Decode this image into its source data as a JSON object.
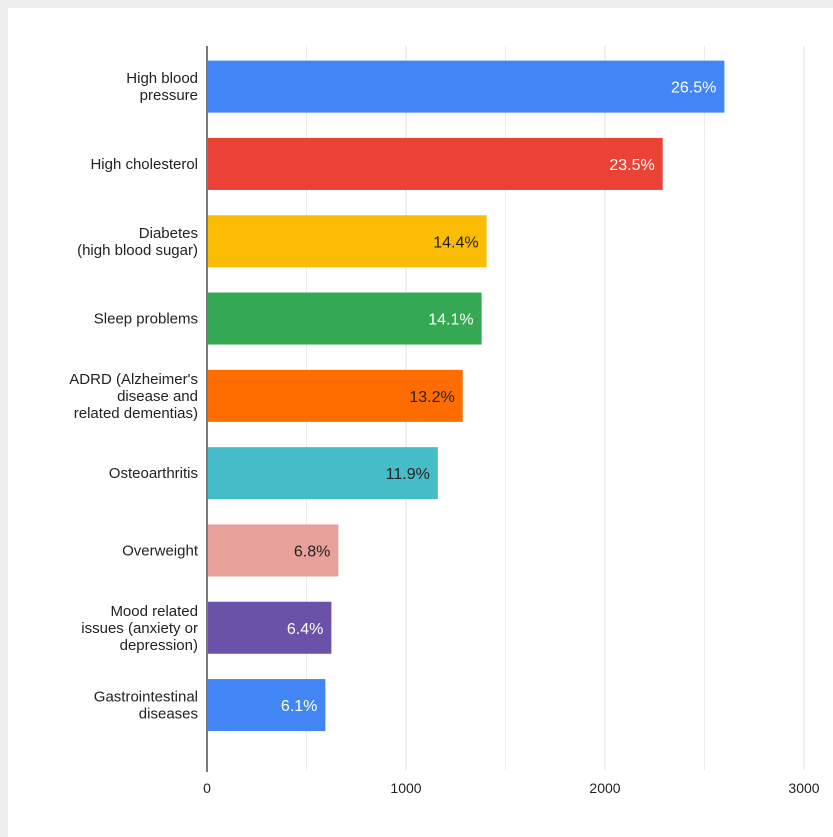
{
  "chart_data": {
    "type": "bar",
    "orientation": "horizontal",
    "categories": [
      [
        "High blood",
        "pressure"
      ],
      [
        "High cholesterol"
      ],
      [
        "Diabetes",
        "(high blood sugar)"
      ],
      [
        "Sleep problems"
      ],
      [
        "ADRD (Alzheimer's",
        "disease and",
        "related dementias)"
      ],
      [
        "Osteoarthritis"
      ],
      [
        "Overweight"
      ],
      [
        "Mood related",
        "issues (anxiety or",
        "depression)"
      ],
      [
        "Gastrointestinal",
        "diseases"
      ]
    ],
    "values": [
      2600,
      2290,
      1405,
      1380,
      1285,
      1160,
      660,
      625,
      595
    ],
    "data_labels": [
      "26.5%",
      "23.5%",
      "14.4%",
      "14.1%",
      "13.2%",
      "11.9%",
      "6.8%",
      "6.4%",
      "6.1%"
    ],
    "colors": [
      "#4285f4",
      "#ea4335",
      "#fbbc04",
      "#34a853",
      "#ff6d01",
      "#46bdc6",
      "#e8a09a",
      "#6b52a9",
      "#4285f4"
    ],
    "label_colors": [
      "#ffffff",
      "#ffffff",
      "#222222",
      "#ffffff",
      "#222222",
      "#222222",
      "#222222",
      "#ffffff",
      "#ffffff"
    ],
    "xlim": [
      0,
      3000
    ],
    "xticks": [
      "0",
      "1000",
      "2000",
      "3000"
    ],
    "xtick_values": [
      0,
      1000,
      2000,
      3000
    ],
    "grid": "vertical",
    "title": "",
    "xlabel": "",
    "ylabel": ""
  }
}
